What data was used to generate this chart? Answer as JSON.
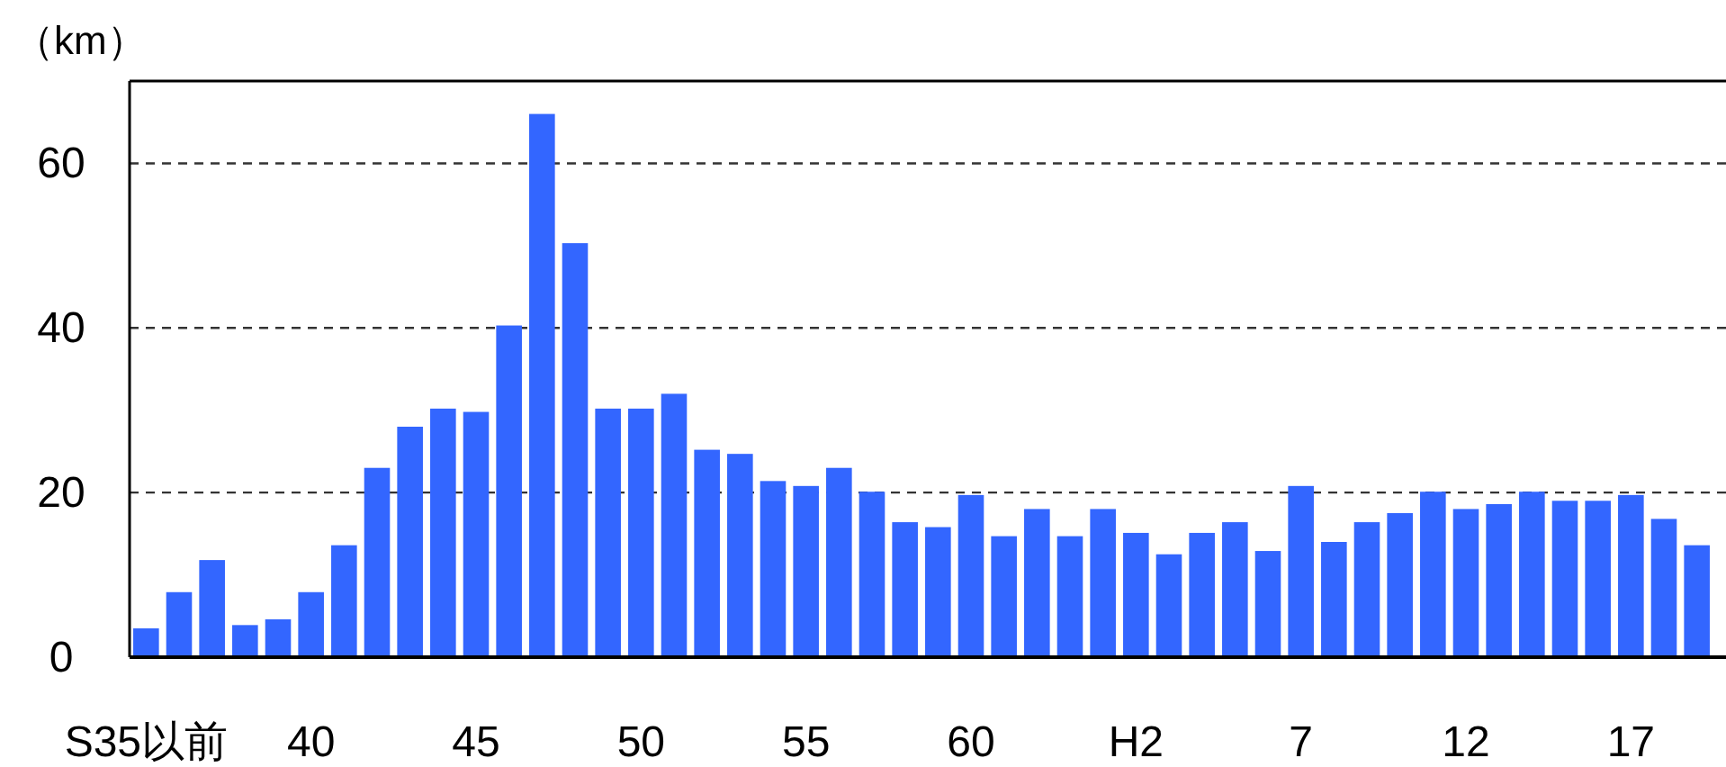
{
  "chart_data": {
    "type": "bar",
    "ylabel": "（km）",
    "color": "#3366ff",
    "categories": [
      "S35以前",
      null,
      null,
      null,
      null,
      "40",
      null,
      null,
      null,
      null,
      "45",
      null,
      null,
      null,
      null,
      "50",
      null,
      null,
      null,
      null,
      "55",
      null,
      null,
      null,
      null,
      "60",
      null,
      null,
      null,
      null,
      "H2",
      null,
      null,
      null,
      null,
      "7",
      null,
      null,
      null,
      null,
      "12",
      null,
      null,
      null,
      null,
      "17",
      null,
      null
    ],
    "values": [
      3.5,
      7.9,
      11.8,
      3.9,
      4.6,
      7.9,
      13.6,
      23,
      28,
      30.2,
      29.8,
      40.3,
      66,
      50.3,
      30.2,
      30.2,
      32,
      25.2,
      24.7,
      21.4,
      20.8,
      23,
      20.1,
      16.4,
      15.8,
      19.7,
      14.7,
      18,
      14.7,
      18,
      15.1,
      12.5,
      15.1,
      16.4,
      12.9,
      20.8,
      14,
      16.4,
      17.5,
      20.1,
      18,
      18.6,
      20.1,
      19,
      19,
      19.7,
      16.8,
      13.6
    ],
    "ylim": [
      0,
      70
    ],
    "yticks": [
      0,
      20,
      40,
      60
    ],
    "grid": "y"
  }
}
